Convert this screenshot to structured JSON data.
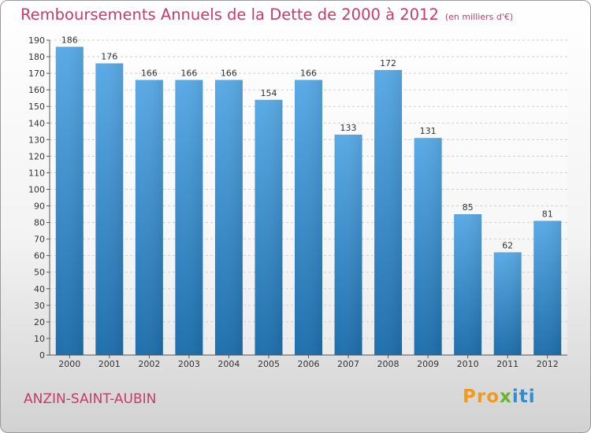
{
  "title": "Remboursements Annuels de la Dette de 2000 à 2012",
  "unit": "(en milliers d'€)",
  "city": "ANZIN-SAINT-AUBIN",
  "logo": {
    "p1": "Pro",
    "p2": "x",
    "p3": "iti"
  },
  "colors": {
    "bar_top": "#5aaae6",
    "bar_bottom": "#1f6fad",
    "title": "#c83a6a"
  },
  "chart_data": {
    "type": "bar",
    "categories": [
      "2000",
      "2001",
      "2002",
      "2003",
      "2004",
      "2005",
      "2006",
      "2007",
      "2008",
      "2009",
      "2010",
      "2011",
      "2012"
    ],
    "values": [
      186,
      176,
      166,
      166,
      166,
      154,
      166,
      133,
      172,
      131,
      85,
      62,
      81
    ],
    "ylim": [
      0,
      190
    ],
    "yticks": [
      0,
      10,
      20,
      30,
      40,
      50,
      60,
      70,
      80,
      90,
      100,
      110,
      120,
      130,
      140,
      150,
      160,
      170,
      180,
      190
    ],
    "grid": true
  }
}
